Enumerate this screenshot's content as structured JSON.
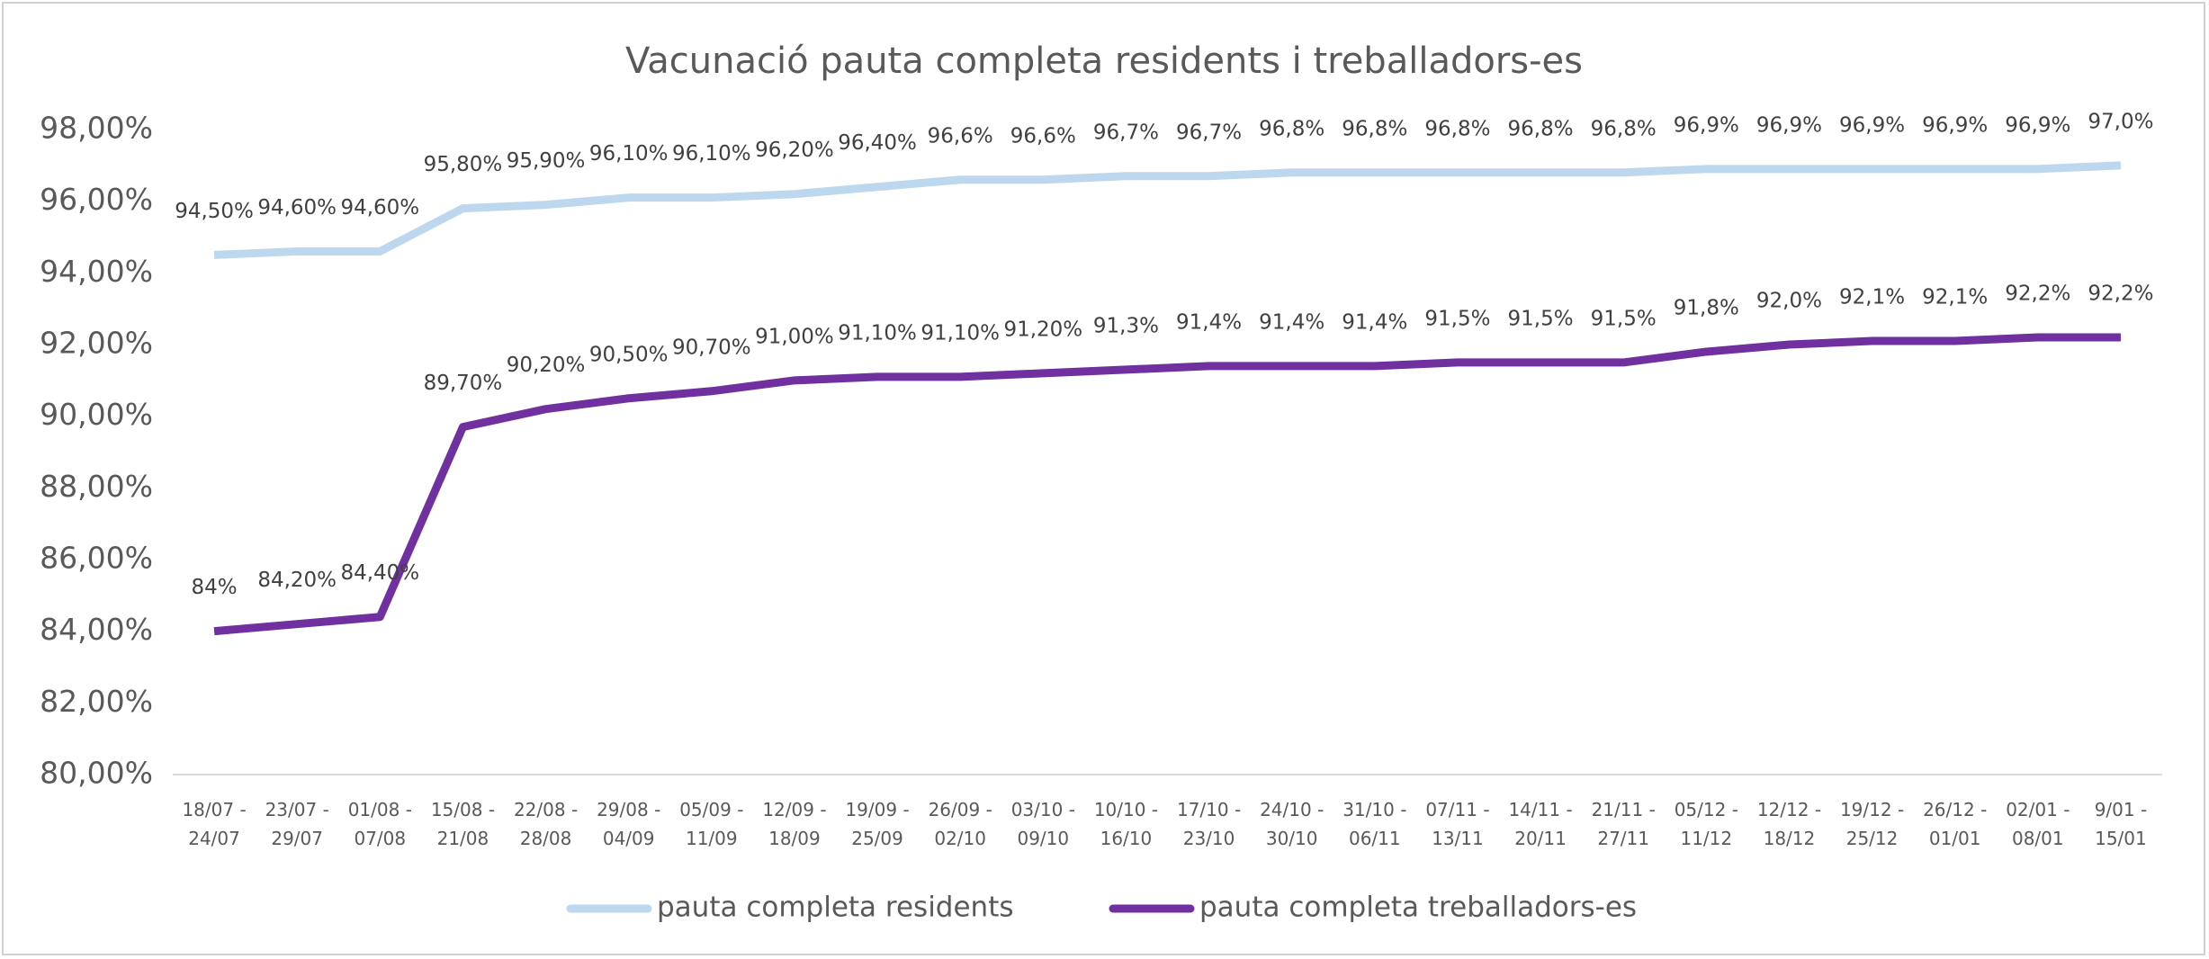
{
  "chart_data": {
    "type": "line",
    "title": "Vacunació pauta completa residents i treballadors-es",
    "categories": [
      "18/07 - 24/07",
      "23/07 - 29/07",
      "01/08 - 07/08",
      "15/08 - 21/08",
      "22/08 - 28/08",
      "29/08 - 04/09",
      "05/09 - 11/09",
      "12/09 - 18/09",
      "19/09 - 25/09",
      "26/09 - 02/10",
      "03/10 - 09/10",
      "10/10 - 16/10",
      "17/10 - 23/10",
      "24/10 - 30/10",
      "31/10 - 06/11",
      "07/11 - 13/11",
      "14/11 - 20/11",
      "21/11 - 27/11",
      "05/12 - 11/12",
      "12/12 - 18/12",
      "19/12 - 25/12",
      "26/12 - 01/01",
      "02/01 - 08/01",
      "9/01 - 15/01"
    ],
    "series": [
      {
        "name": "pauta completa residents",
        "color": "#bdd7ee",
        "values": [
          94.5,
          94.6,
          94.6,
          95.8,
          95.9,
          96.1,
          96.1,
          96.2,
          96.4,
          96.6,
          96.6,
          96.7,
          96.7,
          96.8,
          96.8,
          96.8,
          96.8,
          96.8,
          96.9,
          96.9,
          96.9,
          96.9,
          96.9,
          97.0
        ],
        "value_labels": [
          "94,50%",
          "94,60%",
          "94,60%",
          "95,80%",
          "95,90%",
          "96,10%",
          "96,10%",
          "96,20%",
          "96,40%",
          "96,6%",
          "96,6%",
          "96,7%",
          "96,7%",
          "96,8%",
          "96,8%",
          "96,8%",
          "96,8%",
          "96,8%",
          "96,9%",
          "96,9%",
          "96,9%",
          "96,9%",
          "96,9%",
          "97,0%"
        ]
      },
      {
        "name": "pauta completa treballadors-es",
        "color": "#7030a0",
        "values": [
          84,
          84.2,
          84.4,
          89.7,
          90.2,
          90.5,
          90.7,
          91.0,
          91.1,
          91.1,
          91.2,
          91.3,
          91.4,
          91.4,
          91.4,
          91.5,
          91.5,
          91.5,
          91.8,
          92.0,
          92.1,
          92.1,
          92.2,
          92.2
        ],
        "value_labels": [
          "84%",
          "84,20%",
          "84,40%",
          "89,70%",
          "90,20%",
          "90,50%",
          "90,70%",
          "91,00%",
          "91,10%",
          "91,10%",
          "91,20%",
          "91,3%",
          "91,4%",
          "91,4%",
          "91,4%",
          "91,5%",
          "91,5%",
          "91,5%",
          "91,8%",
          "92,0%",
          "92,1%",
          "92,1%",
          "92,2%",
          "92,2%"
        ]
      }
    ],
    "ylim": [
      80,
      98
    ],
    "yticks": [
      {
        "value": 80,
        "label": "80,00%"
      },
      {
        "value": 82,
        "label": "82,00%"
      },
      {
        "value": 84,
        "label": "84,00%"
      },
      {
        "value": 86,
        "label": "86,00%"
      },
      {
        "value": 88,
        "label": "88,00%"
      },
      {
        "value": 90,
        "label": "90,00%"
      },
      {
        "value": 92,
        "label": "92,00%"
      },
      {
        "value": 94,
        "label": "94,00%"
      },
      {
        "value": 96,
        "label": "96,00%"
      },
      {
        "value": 98,
        "label": "98,00%"
      }
    ],
    "grid": false,
    "legend": "bottom"
  }
}
